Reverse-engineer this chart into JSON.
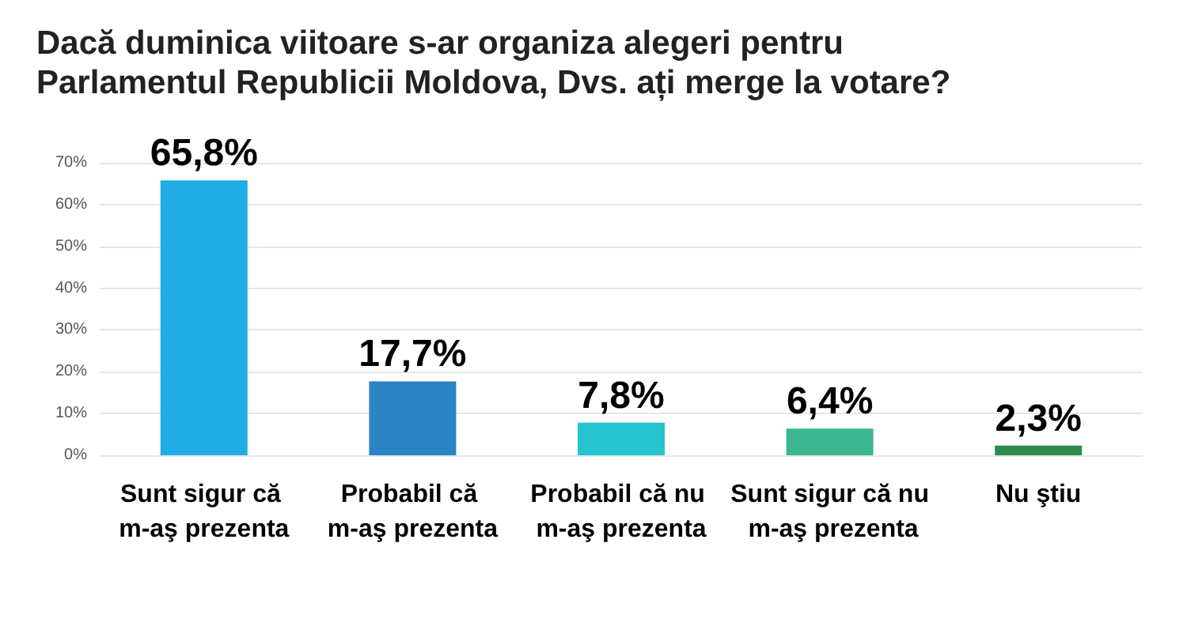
{
  "chart_data": {
    "type": "bar",
    "title": "Dacă duminica viitoare s-ar organiza alegeri pentru Parlamentul Republicii Moldova, Dvs. ați merge la votare?",
    "categories": [
      "Sunt sigur că m-aş prezenta",
      "Probabil că m-aş prezenta",
      "Probabil că nu m-aş prezenta",
      "Sunt sigur că nu m-aş prezenta",
      "Nu ştiu"
    ],
    "values": [
      65.8,
      17.7,
      7.8,
      6.4,
      2.3
    ],
    "colors": [
      "#1eace3",
      "#2a84c6",
      "#25c4d0",
      "#3ab790",
      "#2e8b4c"
    ],
    "value_labels": [
      "65,8%",
      "17,7%",
      "7,8%",
      "6,4%",
      "2,3%"
    ],
    "ylim": [
      0,
      70
    ],
    "yticks": [
      {
        "value": 0,
        "label": "0%"
      },
      {
        "value": 10,
        "label": "10%"
      },
      {
        "value": 20,
        "label": "20%"
      },
      {
        "value": 30,
        "label": "30%"
      },
      {
        "value": 40,
        "label": "40%"
      },
      {
        "value": 50,
        "label": "50%"
      },
      {
        "value": 60,
        "label": "60%"
      },
      {
        "value": 70,
        "label": "70%"
      }
    ],
    "grid": true
  }
}
